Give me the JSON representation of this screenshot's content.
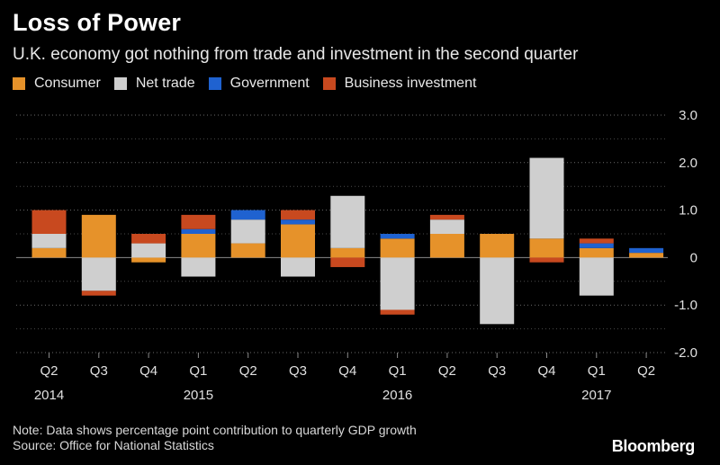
{
  "title": "Loss of Power",
  "subtitle": "U.K. economy got nothing from trade and investment in the second quarter",
  "legend": [
    {
      "label": "Consumer",
      "color": "#e6922a"
    },
    {
      "label": "Net trade",
      "color": "#cfcfcf"
    },
    {
      "label": "Government",
      "color": "#1f62d0"
    },
    {
      "label": "Business investment",
      "color": "#c8491f"
    }
  ],
  "note": "Note: Data shows percentage point contribution to quarterly GDP growth",
  "source": "Source: Office for National Statistics",
  "brand": "Bloomberg",
  "chart_data": {
    "type": "bar",
    "stacked": true,
    "categories": [
      "Q2",
      "Q3",
      "Q4",
      "Q1",
      "Q2",
      "Q3",
      "Q4",
      "Q1",
      "Q2",
      "Q3",
      "Q4",
      "Q1",
      "Q2"
    ],
    "year_labels": [
      {
        "label": "2014",
        "category_index": 0
      },
      {
        "label": "2015",
        "category_index": 3
      },
      {
        "label": "2016",
        "category_index": 7
      },
      {
        "label": "2017",
        "category_index": 11
      }
    ],
    "series": [
      {
        "name": "Consumer",
        "color": "#e6922a",
        "values": [
          0.2,
          0.9,
          -0.1,
          0.5,
          0.3,
          0.7,
          0.2,
          0.4,
          0.5,
          0.5,
          0.4,
          0.2,
          0.1
        ]
      },
      {
        "name": "Net trade",
        "color": "#cfcfcf",
        "values": [
          0.3,
          -0.7,
          0.3,
          -0.4,
          0.5,
          -0.4,
          1.1,
          -1.1,
          0.3,
          -1.4,
          1.7,
          -0.8,
          0.0
        ]
      },
      {
        "name": "Government",
        "color": "#1f62d0",
        "values": [
          0.0,
          0.0,
          0.0,
          0.1,
          0.2,
          0.1,
          0.0,
          0.1,
          0.0,
          0.0,
          0.0,
          0.1,
          0.1
        ]
      },
      {
        "name": "Business investment",
        "color": "#c8491f",
        "values": [
          0.5,
          -0.1,
          0.2,
          0.3,
          0.0,
          0.2,
          -0.2,
          -0.1,
          0.1,
          0.0,
          -0.1,
          0.1,
          0.0
        ]
      }
    ],
    "ylim": [
      -2.0,
      3.0
    ],
    "yticks": [
      3.0,
      2.0,
      1.0,
      0,
      -1.0,
      -2.0
    ],
    "ytick_labels": [
      "3.0",
      "2.0",
      "1.0",
      "0",
      "-1.0",
      "-2.0"
    ],
    "ylabel": "",
    "xlabel": "",
    "y_axis_position": "right",
    "grid": "dotted horizontal"
  }
}
